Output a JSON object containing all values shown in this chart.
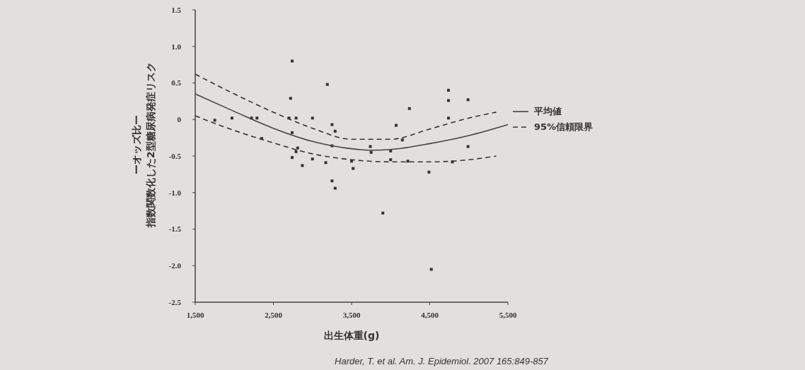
{
  "chart_data": {
    "type": "scatter",
    "xlabel": "出生体重(g)",
    "ylabel": "指数関数化した2型糖尿病発症リスクーオッズ比ー",
    "annotations": [
      "Harder, T. et al. Am. J. Epidemiol. 2007 165:849-857"
    ],
    "xlim": [
      1500,
      5500
    ],
    "xticks": [
      {
        "value": 1500,
        "label": "1,500"
      },
      {
        "value": 2500,
        "label": "2,500"
      },
      {
        "value": 3500,
        "label": "3,500"
      },
      {
        "value": 4500,
        "label": "4,500"
      },
      {
        "value": 5500,
        "label": "5,500"
      }
    ],
    "ylim": [
      -2.5,
      1.5
    ],
    "yticks": [
      {
        "value": 1.5,
        "label": "1.5"
      },
      {
        "value": 1.0,
        "label": "1.0"
      },
      {
        "value": 0.5,
        "label": "0.5"
      },
      0,
      {
        "value": -0.5,
        "label": "-0.5"
      },
      {
        "value": -1.0,
        "label": "-1.0"
      },
      {
        "value": -1.5,
        "label": "-1.5"
      },
      {
        "value": -2.0,
        "label": "-2.0"
      },
      {
        "value": -2.5,
        "label": "-2.5"
      }
    ],
    "grid": false,
    "legend": "right",
    "marker": "square",
    "series": [
      {
        "color": "#333333",
        "x": [
          2740,
          3190,
          2720,
          2700,
          2790,
          3000,
          1970,
          2220,
          2290,
          1750,
          2350,
          2740,
          3250,
          3290,
          3250,
          2810,
          2790,
          2740,
          3000,
          3170,
          2870,
          3250,
          3290,
          3500,
          3520,
          4740,
          4740,
          4990,
          4240,
          4740,
          4070,
          4990,
          3740,
          3750,
          4000,
          4000,
          4490,
          4150,
          4220,
          4790,
          3900,
          4520
        ],
        "values": [
          0.8,
          0.48,
          0.29,
          0.02,
          0.02,
          0.02,
          0.02,
          0.02,
          0.02,
          -0.01,
          -0.26,
          -0.18,
          -0.07,
          -0.16,
          -0.36,
          -0.39,
          -0.44,
          -0.52,
          -0.54,
          -0.59,
          -0.63,
          -0.84,
          -0.94,
          -0.57,
          -0.67,
          0.4,
          0.26,
          0.27,
          0.15,
          0.02,
          -0.08,
          -0.37,
          -0.37,
          -0.45,
          -0.43,
          -0.55,
          -0.72,
          -0.28,
          -0.57,
          -0.58,
          -1.28,
          -2.05
        ]
      },
      {
        "type": "line",
        "name": "平均値",
        "color": "#444444",
        "line_style": "solid",
        "marker": "none",
        "x": [
          1500,
          2000,
          2500,
          3000,
          3500,
          3750,
          4000,
          4500,
          5000,
          5500
        ],
        "values": [
          0.35,
          0.11,
          -0.12,
          -0.3,
          -0.4,
          -0.42,
          -0.41,
          -0.33,
          -0.22,
          -0.07
        ]
      },
      {
        "type": "line",
        "name": "95%信頼限界",
        "color": "#333333",
        "line_style": "dashed",
        "marker": "none",
        "x": [
          1500,
          2000,
          2500,
          3000,
          3500,
          4000,
          4500,
          5000,
          5350
        ],
        "values": [
          0.62,
          0.35,
          0.1,
          -0.12,
          -0.27,
          -0.27,
          -0.13,
          0.02,
          0.1
        ]
      },
      {
        "type": "line",
        "color": "#333333",
        "line_style": "dashed",
        "marker": "none",
        "x": [
          1500,
          2000,
          2500,
          3000,
          3500,
          4000,
          4500,
          5000,
          5350
        ],
        "values": [
          0.05,
          -0.15,
          -0.32,
          -0.47,
          -0.55,
          -0.58,
          -0.58,
          -0.55,
          -0.5
        ]
      }
    ]
  }
}
